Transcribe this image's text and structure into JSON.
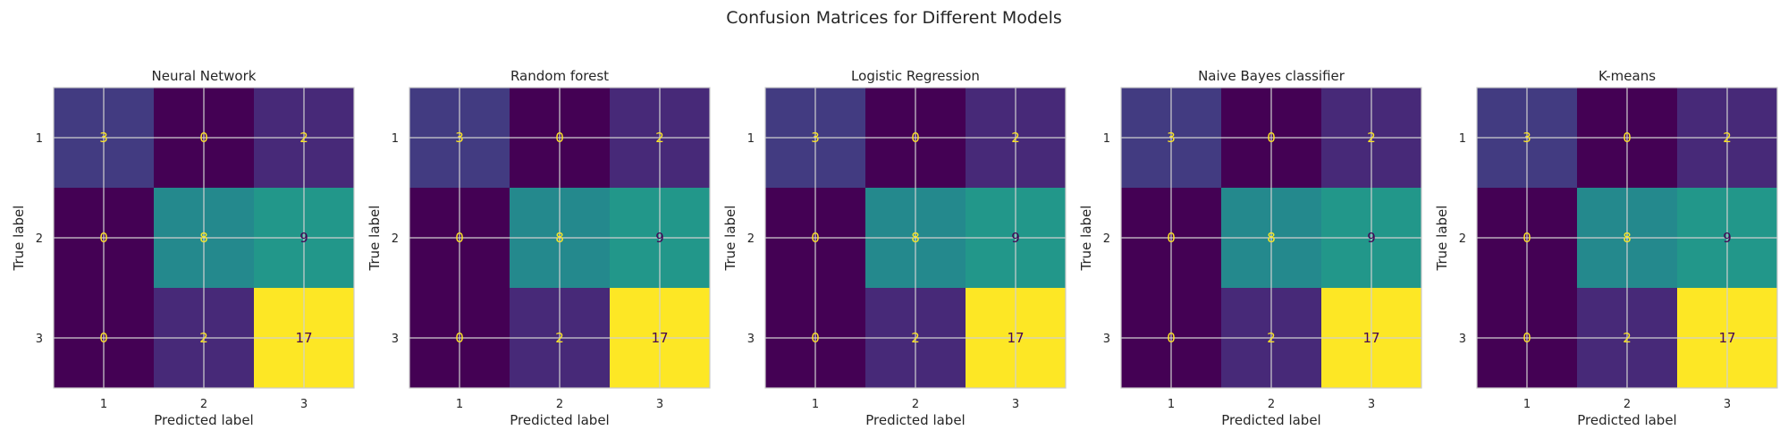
{
  "chart_data": {
    "type": "heatmap",
    "title": "Confusion Matrices for Different Models",
    "grid": true,
    "colormap": "viridis",
    "colors": {
      "low": "#440154",
      "high": "#fde725",
      "text_on_dark": "#fde725",
      "text_on_light": "#440154",
      "grid": "#d0d0d0",
      "spine": "#cccccc"
    },
    "matrices": [
      {
        "title": "Neural Network",
        "xlabel": "Predicted label",
        "ylabel": "True label",
        "x_ticks": [
          "1",
          "2",
          "3"
        ],
        "y_ticks": [
          "1",
          "2",
          "3"
        ],
        "values": [
          [
            3,
            0,
            2
          ],
          [
            0,
            8,
            9
          ],
          [
            0,
            2,
            17
          ]
        ]
      },
      {
        "title": "Random forest",
        "xlabel": "Predicted label",
        "ylabel": "True label",
        "x_ticks": [
          "1",
          "2",
          "3"
        ],
        "y_ticks": [
          "1",
          "2",
          "3"
        ],
        "values": [
          [
            3,
            0,
            2
          ],
          [
            0,
            8,
            9
          ],
          [
            0,
            2,
            17
          ]
        ]
      },
      {
        "title": "Logistic Regression",
        "xlabel": "Predicted label",
        "ylabel": "True label",
        "x_ticks": [
          "1",
          "2",
          "3"
        ],
        "y_ticks": [
          "1",
          "2",
          "3"
        ],
        "values": [
          [
            3,
            0,
            2
          ],
          [
            0,
            8,
            9
          ],
          [
            0,
            2,
            17
          ]
        ]
      },
      {
        "title": "Naive Bayes classifier",
        "xlabel": "Predicted label",
        "ylabel": "True label",
        "x_ticks": [
          "1",
          "2",
          "3"
        ],
        "y_ticks": [
          "1",
          "2",
          "3"
        ],
        "values": [
          [
            3,
            0,
            2
          ],
          [
            0,
            8,
            9
          ],
          [
            0,
            2,
            17
          ]
        ]
      },
      {
        "title": "K-means",
        "xlabel": "Predicted label",
        "ylabel": "True label",
        "x_ticks": [
          "1",
          "2",
          "3"
        ],
        "y_ticks": [
          "1",
          "2",
          "3"
        ],
        "values": [
          [
            3,
            0,
            2
          ],
          [
            0,
            8,
            9
          ],
          [
            0,
            2,
            17
          ]
        ]
      }
    ]
  }
}
